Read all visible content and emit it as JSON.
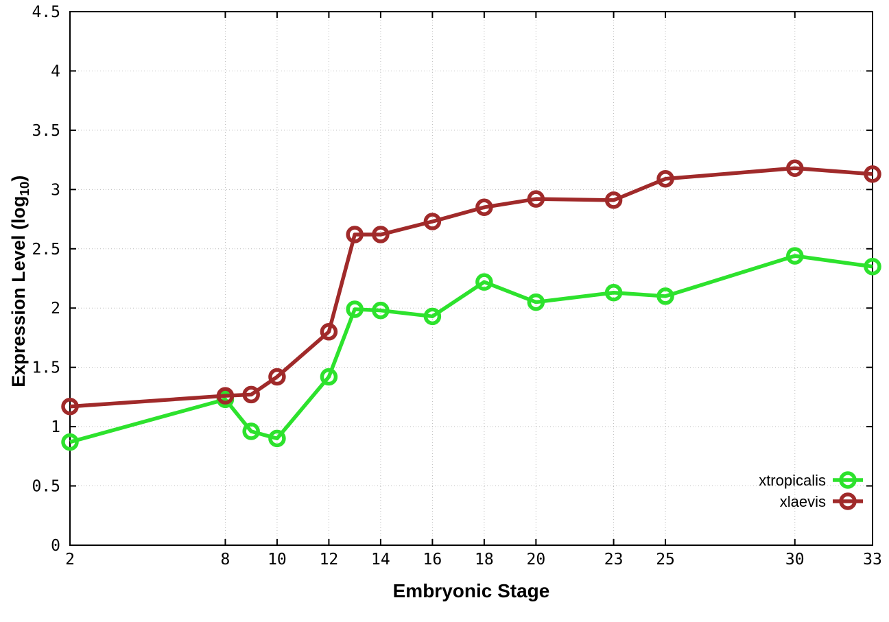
{
  "chart_data": {
    "type": "line",
    "title": "",
    "xlabel": "Embryonic Stage",
    "ylabel": "Expression Level (log10)",
    "ylabel_main": "Expression Level (log",
    "ylabel_sub": "10",
    "ylabel_close": ")",
    "x": [
      2,
      8,
      9,
      10,
      12,
      13,
      14,
      16,
      18,
      20,
      23,
      25,
      30,
      33
    ],
    "series": [
      {
        "name": "xtropicalis",
        "color": "#2de22d",
        "values": [
          0.87,
          1.23,
          0.96,
          0.9,
          1.42,
          1.99,
          1.98,
          1.93,
          2.22,
          2.05,
          2.13,
          2.1,
          2.44,
          2.35
        ]
      },
      {
        "name": "xlaevis",
        "color": "#a02a2a",
        "values": [
          1.17,
          1.26,
          1.27,
          1.42,
          1.8,
          2.62,
          2.62,
          2.73,
          2.85,
          2.92,
          2.91,
          3.09,
          3.18,
          3.13
        ]
      }
    ],
    "xlim": [
      2,
      33
    ],
    "ylim": [
      0,
      4.5
    ],
    "x_tick_values": [
      2,
      8,
      10,
      12,
      14,
      16,
      18,
      20,
      23,
      25,
      30,
      33
    ],
    "x_tick_labels": [
      "2",
      "8",
      "10",
      "12",
      "14",
      "16",
      "18",
      "20",
      "23",
      "25",
      "30",
      "33"
    ],
    "y_tick_values": [
      0,
      0.5,
      1,
      1.5,
      2,
      2.5,
      3,
      3.5,
      4,
      4.5
    ],
    "y_tick_labels": [
      "0",
      "0.5",
      "1",
      "1.5",
      "2",
      "2.5",
      "3",
      "3.5",
      "4",
      "4.5"
    ],
    "grid": true,
    "grid_color": "#bbbbbb",
    "border_color": "#000000",
    "legend_position": "bottom-right",
    "legend_entries": [
      "xtropicalis",
      "xlaevis"
    ]
  }
}
